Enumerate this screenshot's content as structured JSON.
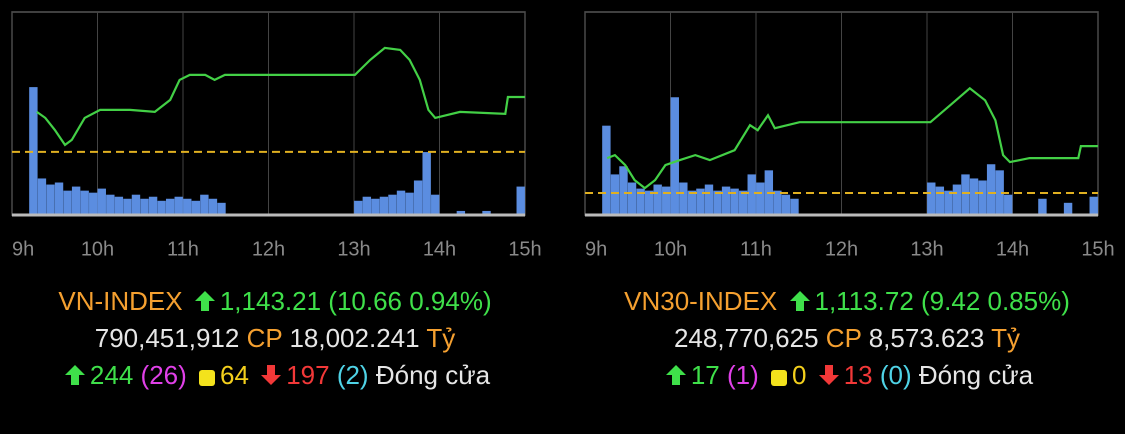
{
  "chart_data": [
    {
      "type": "line",
      "x": [
        9.29,
        9.39,
        9.5,
        9.62,
        9.7,
        9.85,
        10.03,
        10.38,
        10.67,
        10.85,
        10.96,
        11.08,
        11.26,
        11.37,
        11.49,
        13.01,
        13.19,
        13.36,
        13.54,
        13.65,
        13.77,
        13.87,
        13.95,
        14.24,
        14.77,
        14.8,
        15.0
      ],
      "values": [
        1140.31,
        1139.15,
        1136.82,
        1133.91,
        1134.88,
        1139.15,
        1140.7,
        1140.7,
        1140.31,
        1142.64,
        1146.52,
        1147.49,
        1147.49,
        1146.52,
        1147.49,
        1147.49,
        1150.4,
        1152.73,
        1152.34,
        1150.4,
        1146.52,
        1140.7,
        1139.15,
        1140.31,
        1139.92,
        1143.21,
        1143.21
      ],
      "color": "#43d046",
      "reference": 1132.55,
      "reference_color": "#e0b021",
      "volume": {
        "x": [
          9.25,
          9.35,
          9.45,
          9.55,
          9.65,
          9.75,
          9.85,
          9.95,
          10.05,
          10.15,
          10.25,
          10.35,
          10.45,
          10.55,
          10.65,
          10.75,
          10.85,
          10.95,
          11.05,
          11.15,
          11.25,
          11.35,
          11.45,
          13.05,
          13.15,
          13.25,
          13.35,
          13.45,
          13.55,
          13.65,
          13.75,
          13.85,
          13.95,
          14.25,
          14.55,
          14.95
        ],
        "values": [
          63,
          18,
          15,
          16,
          12,
          14,
          12,
          11,
          13,
          10,
          9,
          8,
          10,
          8,
          9,
          7,
          8,
          9,
          8,
          7,
          10,
          8,
          6,
          7,
          9,
          8,
          9,
          10,
          12,
          11,
          17,
          31,
          10,
          2,
          2,
          14
        ],
        "color": "#5b8de0"
      },
      "xlim": [
        9,
        15
      ],
      "ylim": [
        1120.3,
        1159.7
      ],
      "y2lim": [
        0,
        100
      ],
      "xticks": [
        {
          "value": 9,
          "label": "9h"
        },
        {
          "value": 10,
          "label": "10h"
        },
        {
          "value": 11,
          "label": "11h"
        },
        {
          "value": 12,
          "label": "12h"
        },
        {
          "value": 13,
          "label": "13h"
        },
        {
          "value": 14,
          "label": "14h"
        },
        {
          "value": 15,
          "label": "15h"
        }
      ],
      "grid": true,
      "summary": {
        "name": "VN-INDEX",
        "close": "1,143.21",
        "change": "(10.66 0.94%)",
        "volume": "790,451,912",
        "cp": "CP",
        "turnover": "18,002.241",
        "unit": "Tỷ",
        "advances": "244",
        "ceiling": "(26)",
        "unchanged": "64",
        "declines": "197",
        "floor": "(2)",
        "status": "Đóng cửa"
      }
    },
    {
      "type": "line",
      "x": [
        9.26,
        9.35,
        9.47,
        9.58,
        9.7,
        9.82,
        9.94,
        10.11,
        10.29,
        10.46,
        10.75,
        10.93,
        11.02,
        11.14,
        11.22,
        11.51,
        13.04,
        13.27,
        13.5,
        13.68,
        13.8,
        13.89,
        13.97,
        14.2,
        14.77,
        14.8,
        15.0
      ],
      "values": [
        1111.3,
        1111.9,
        1109.9,
        1106.9,
        1105.3,
        1106.9,
        1109.9,
        1110.9,
        1111.9,
        1110.9,
        1112.9,
        1117.9,
        1116.9,
        1119.9,
        1117.3,
        1118.5,
        1118.5,
        1121.9,
        1125.3,
        1122.9,
        1118.9,
        1111.9,
        1110.5,
        1111.3,
        1111.3,
        1113.72,
        1113.72
      ],
      "color": "#43d046",
      "reference": 1104.3,
      "reference_color": "#e0b021",
      "volume": {
        "x": [
          9.25,
          9.35,
          9.45,
          9.55,
          9.65,
          9.75,
          9.85,
          9.95,
          10.05,
          10.15,
          10.25,
          10.35,
          10.45,
          10.55,
          10.65,
          10.75,
          10.85,
          10.95,
          11.05,
          11.15,
          11.25,
          11.35,
          11.45,
          13.05,
          13.15,
          13.25,
          13.35,
          13.45,
          13.55,
          13.65,
          13.75,
          13.85,
          13.95,
          14.35,
          14.65,
          14.95
        ],
        "values": [
          44,
          20,
          24,
          16,
          13,
          12,
          15,
          14,
          58,
          16,
          12,
          13,
          15,
          12,
          14,
          13,
          12,
          20,
          16,
          22,
          12,
          10,
          8,
          16,
          14,
          12,
          15,
          20,
          18,
          17,
          25,
          22,
          10,
          8,
          6,
          9
        ],
        "color": "#5b8de0"
      },
      "xlim": [
        9,
        15
      ],
      "ylim": [
        1099.9,
        1140.6
      ],
      "y2lim": [
        0,
        100
      ],
      "xticks": [
        {
          "value": 9,
          "label": "9h"
        },
        {
          "value": 10,
          "label": "10h"
        },
        {
          "value": 11,
          "label": "11h"
        },
        {
          "value": 12,
          "label": "12h"
        },
        {
          "value": 13,
          "label": "13h"
        },
        {
          "value": 14,
          "label": "14h"
        },
        {
          "value": 15,
          "label": "15h"
        }
      ],
      "grid": true,
      "summary": {
        "name": "VN30-INDEX",
        "close": "1,113.72",
        "change": "(9.42 0.85%)",
        "volume": "248,770,625",
        "cp": "CP",
        "turnover": "8,573.623",
        "unit": "Tỷ",
        "advances": "17",
        "ceiling": "(1)",
        "unchanged": "0",
        "declines": "13",
        "floor": "(0)",
        "status": "Đóng cửa"
      }
    }
  ]
}
